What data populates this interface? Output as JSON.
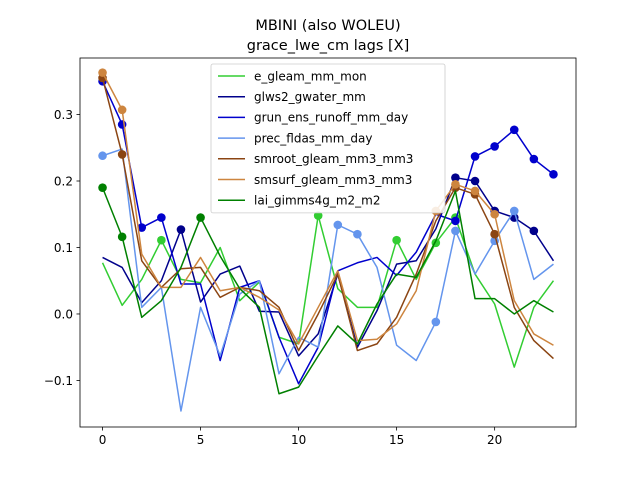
{
  "chart_data": {
    "type": "line",
    "title": "MBINI (also WOLEU)",
    "subtitle": "grace_lwe_cm lags [X]",
    "xlabel": "",
    "ylabel": "",
    "xlim": [
      -1.15,
      24.15
    ],
    "ylim": [
      -0.17,
      0.385
    ],
    "x_ticks": [
      0,
      5,
      10,
      15,
      20
    ],
    "y_ticks": [
      -0.1,
      0.0,
      0.1,
      0.2,
      0.3
    ],
    "y_tick_labels": [
      "−0.1",
      "0.0",
      "0.1",
      "0.2",
      "0.3"
    ],
    "x": [
      0,
      1,
      2,
      3,
      4,
      5,
      6,
      7,
      8,
      9,
      10,
      11,
      12,
      13,
      14,
      15,
      16,
      17,
      18,
      19,
      20,
      21,
      22,
      23
    ],
    "legend_position": "top-center",
    "series": [
      {
        "name": "e_gleam_mm_mon",
        "color": "#32cd32",
        "values": [
          0.077,
          0.013,
          0.052,
          0.111,
          0.052,
          0.047,
          0.1,
          0.02,
          0.048,
          -0.035,
          -0.045,
          0.148,
          0.038,
          0.01,
          0.01,
          0.111,
          0.052,
          0.107,
          0.145,
          0.06,
          0.015,
          -0.08,
          0.01,
          0.05
        ],
        "markers_at": [
          3,
          11,
          15,
          17,
          18
        ]
      },
      {
        "name": "glws2_gwater_mm",
        "color": "#00008b",
        "values": [
          0.085,
          0.07,
          0.017,
          0.05,
          0.127,
          0.018,
          0.06,
          0.072,
          0.004,
          0.003,
          -0.063,
          -0.03,
          0.06,
          -0.05,
          0.005,
          0.075,
          0.08,
          0.128,
          0.205,
          0.2,
          0.155,
          0.145,
          0.125,
          0.08
        ],
        "markers_at": [
          4,
          18,
          19,
          20,
          21,
          22
        ]
      },
      {
        "name": "grun_ens_runoff_mm_day",
        "color": "#0000cd",
        "values": [
          0.35,
          0.285,
          0.13,
          0.145,
          0.045,
          0.045,
          -0.07,
          0.04,
          0.05,
          -0.035,
          -0.105,
          -0.05,
          0.065,
          0.077,
          0.085,
          0.058,
          0.093,
          0.15,
          0.14,
          0.237,
          0.252,
          0.277,
          0.233,
          0.21
        ],
        "markers_at": [
          0,
          1,
          2,
          3,
          18,
          19,
          20,
          21,
          22,
          23
        ]
      },
      {
        "name": "prec_fldas_mm_day",
        "color": "#6495ed",
        "values": [
          0.238,
          0.248,
          0.01,
          0.04,
          -0.146,
          0.01,
          -0.063,
          0.03,
          0.05,
          -0.09,
          -0.035,
          -0.05,
          0.134,
          0.12,
          0.07,
          -0.047,
          -0.07,
          -0.012,
          0.125,
          0.06,
          0.11,
          0.155,
          0.052,
          0.075
        ],
        "markers_at": [
          0,
          12,
          13,
          17,
          18,
          20,
          21
        ]
      },
      {
        "name": "smroot_gleam_mm3_mm3",
        "color": "#8b4513",
        "values": [
          0.355,
          0.24,
          0.08,
          0.04,
          0.068,
          0.07,
          0.025,
          0.04,
          0.035,
          0.01,
          -0.055,
          0.0,
          0.06,
          -0.055,
          -0.045,
          -0.005,
          0.06,
          0.14,
          0.19,
          0.18,
          0.12,
          0.01,
          -0.04,
          -0.067
        ],
        "markers_at": [
          0,
          1,
          18,
          19,
          20
        ]
      },
      {
        "name": "smsurf_gleam_mm3_mm3",
        "color": "#cd853f",
        "values": [
          0.363,
          0.307,
          0.09,
          0.04,
          0.04,
          0.085,
          0.035,
          0.04,
          0.025,
          0.006,
          -0.045,
          0.01,
          0.065,
          -0.04,
          -0.038,
          -0.015,
          0.035,
          0.155,
          0.195,
          0.185,
          0.15,
          0.02,
          -0.03,
          -0.047
        ],
        "markers_at": [
          0,
          1,
          17,
          18,
          19,
          20
        ]
      },
      {
        "name": "lai_gimms4g_m2_m2",
        "color": "#008000",
        "values": [
          0.19,
          0.116,
          -0.005,
          0.02,
          0.07,
          0.145,
          0.087,
          0.038,
          0.01,
          -0.12,
          -0.11,
          -0.063,
          -0.018,
          -0.045,
          0.015,
          0.06,
          0.055,
          0.11,
          0.185,
          0.023,
          0.023,
          0.0,
          0.02,
          0.003
        ],
        "markers_at": [
          0,
          1,
          5
        ]
      }
    ]
  }
}
